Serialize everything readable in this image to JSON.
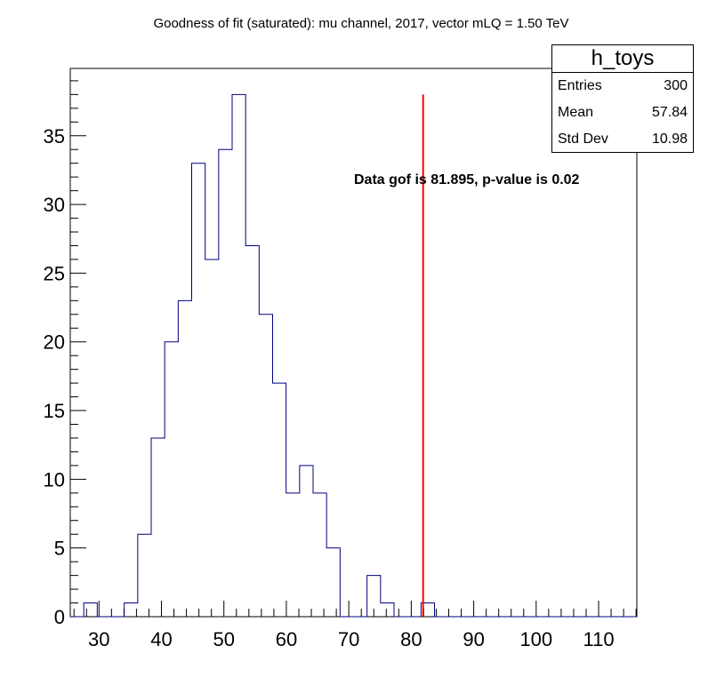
{
  "chart_data": {
    "type": "histogram",
    "title": "Goodness of fit (saturated): mu channel, 2017, vector mLQ = 1.50 TeV",
    "bin_edges": [
      25.4,
      27.56,
      29.72,
      31.88,
      34.04,
      36.2,
      38.36,
      40.52,
      42.68,
      44.84,
      47.0,
      49.16,
      51.32,
      53.48,
      55.64,
      57.8,
      59.96,
      62.12,
      64.28,
      66.44,
      68.6,
      70.76,
      72.92,
      75.08,
      77.24,
      79.4,
      81.56,
      83.72,
      85.88,
      88.04,
      90.2,
      92.36,
      94.52,
      96.68,
      98.84,
      101.0,
      103.16,
      105.32,
      107.48,
      109.64,
      111.8,
      113.96,
      116.12
    ],
    "counts": [
      0,
      1,
      0,
      0,
      1,
      6,
      13,
      20,
      23,
      33,
      26,
      34,
      38,
      27,
      22,
      17,
      9,
      11,
      9,
      5,
      0,
      0,
      3,
      1,
      0,
      0,
      1,
      0,
      0,
      0,
      0,
      0,
      0,
      0,
      0,
      0,
      0,
      0,
      0,
      0,
      0,
      0
    ],
    "xlim": [
      25.4,
      116.12
    ],
    "ylim": [
      0,
      39.9
    ],
    "x_ticks": [
      "30",
      "40",
      "50",
      "60",
      "70",
      "80",
      "90",
      "100",
      "110"
    ],
    "y_ticks": [
      "0",
      "5",
      "10",
      "15",
      "20",
      "25",
      "30",
      "35"
    ],
    "data_line": {
      "x": 81.895,
      "y_top": 38
    },
    "annotation": "Data gof is 81.895, p-value is 0.02",
    "colors": {
      "histogram": "#000080",
      "data_line": "#ff0000"
    }
  },
  "stats_box": {
    "title": "h_toys",
    "rows": [
      {
        "label": "Entries",
        "value": "300"
      },
      {
        "label": "Mean",
        "value": "57.84"
      },
      {
        "label": "Std Dev",
        "value": "10.98"
      }
    ]
  }
}
